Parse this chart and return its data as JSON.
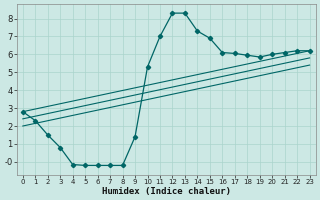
{
  "xlabel": "Humidex (Indice chaleur)",
  "background_color": "#cce8e4",
  "grid_color": "#aad4cc",
  "line_color": "#006666",
  "xlim": [
    -0.5,
    23.5
  ],
  "ylim": [
    -0.75,
    8.8
  ],
  "xticks": [
    0,
    1,
    2,
    3,
    4,
    5,
    6,
    7,
    8,
    9,
    10,
    11,
    12,
    13,
    14,
    15,
    16,
    17,
    18,
    19,
    20,
    21,
    22,
    23
  ],
  "yticks": [
    0,
    1,
    2,
    3,
    4,
    5,
    6,
    7,
    8
  ],
  "ytick_labels": [
    "-0",
    "1",
    "2",
    "3",
    "4",
    "5",
    "6",
    "7",
    "8"
  ],
  "main_series": {
    "x": [
      0,
      1,
      2,
      3,
      4,
      5,
      6,
      7,
      8,
      9,
      10,
      11,
      12,
      13,
      14,
      15,
      16,
      17,
      18,
      19,
      20,
      21,
      22,
      23
    ],
    "y": [
      2.8,
      2.3,
      1.5,
      0.8,
      -0.15,
      -0.2,
      -0.2,
      -0.2,
      -0.2,
      1.4,
      5.3,
      7.0,
      8.3,
      8.3,
      7.3,
      6.9,
      6.1,
      6.05,
      5.95,
      5.85,
      6.0,
      6.1,
      6.2,
      6.2
    ]
  },
  "trend_lines": [
    {
      "x": [
        0,
        23
      ],
      "y": [
        2.8,
        6.2
      ]
    },
    {
      "x": [
        0,
        23
      ],
      "y": [
        2.4,
        5.8
      ]
    },
    {
      "x": [
        0,
        23
      ],
      "y": [
        2.0,
        5.4
      ]
    }
  ]
}
